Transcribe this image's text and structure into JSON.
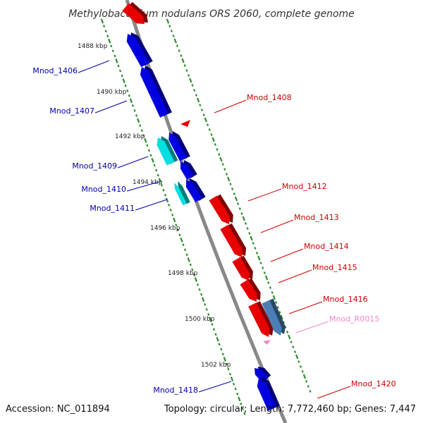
{
  "title": "Methylobacterium nodulans ORS 2060, complete genome",
  "footer": {
    "accession": "Accession: NC_011894",
    "summary": "Topology: circular; Length: 7,772,460 bp; Genes: 7,447"
  },
  "colors": {
    "backbone": "#888888",
    "ruler_ticks": "#2e8b2e",
    "forward_gene": "#e80000",
    "reverse_gene": "#0000e0",
    "reverse_gene_alt": "#00e0e0",
    "rna_gene": "#4a7eb5",
    "forward_label": "#cc0000",
    "reverse_label": "#0000aa",
    "rna_label": "#ee88c8"
  },
  "kbp_labels": [
    "1488 kbp",
    "1490 kbp",
    "1492 kbp",
    "1494 kbp",
    "1496 kbp",
    "1498 kbp",
    "1500 kbp",
    "1502 kbp"
  ],
  "genes_left": [
    {
      "label": "Mnod_1406"
    },
    {
      "label": "Mnod_1407"
    },
    {
      "label": "Mnod_1409"
    },
    {
      "label": "Mnod_1410"
    },
    {
      "label": "Mnod_1411"
    },
    {
      "label": "Mnod_1418"
    }
  ],
  "genes_right": [
    {
      "label": "Mnod_1408"
    },
    {
      "label": "Mnod_1412"
    },
    {
      "label": "Mnod_1413"
    },
    {
      "label": "Mnod_1414"
    },
    {
      "label": "Mnod_1415"
    },
    {
      "label": "Mnod_1416"
    },
    {
      "label": "Mnod_R0015"
    },
    {
      "label": "Mnod_1420"
    }
  ]
}
